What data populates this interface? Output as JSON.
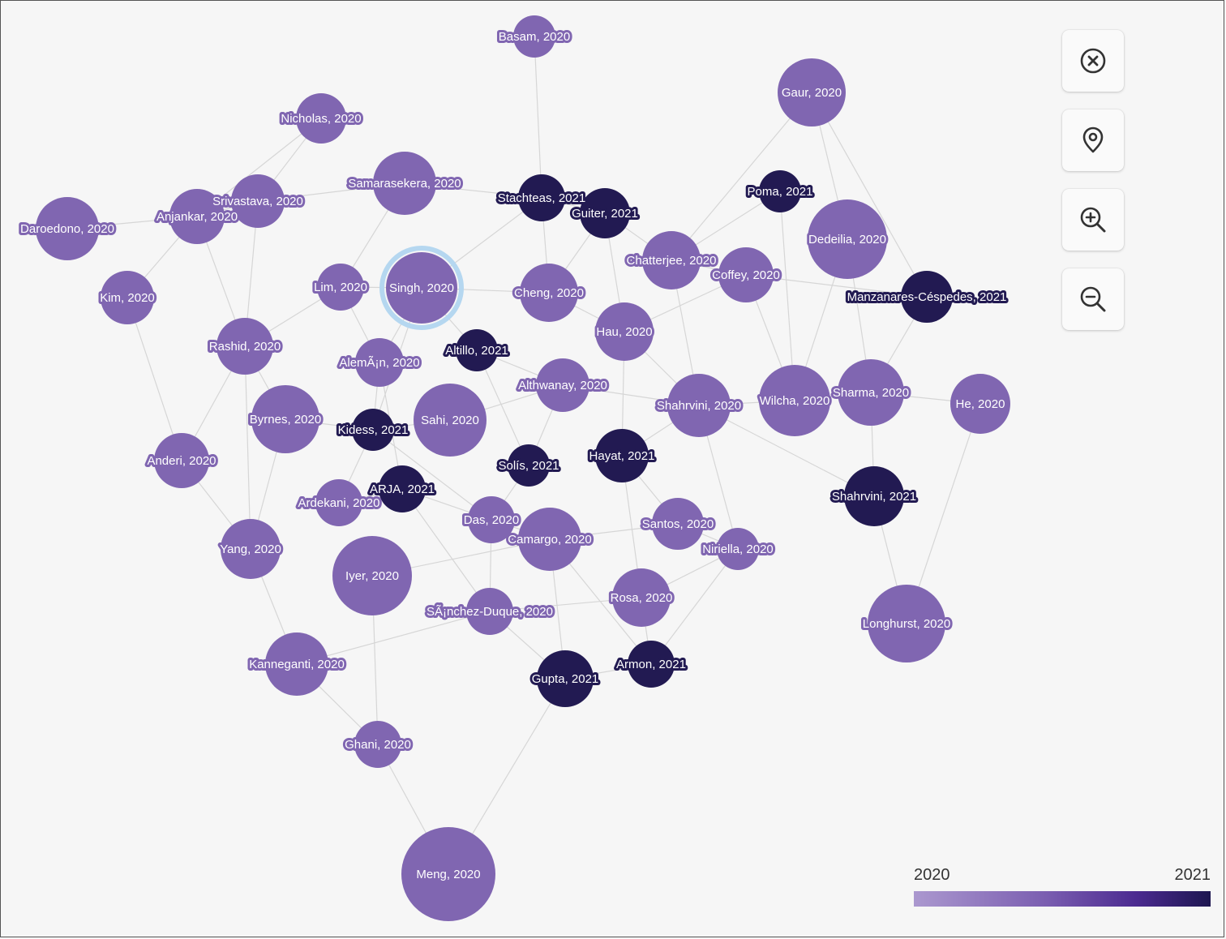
{
  "colors": {
    "year_2020": "#8066b1",
    "year_2021": "#221a52",
    "edge": "#d6d6d6",
    "highlight_ring": "#b5d7f0"
  },
  "legend": {
    "min_label": "2020",
    "max_label": "2021"
  },
  "controls": [
    {
      "icon": "close-circle-icon",
      "name": "close-button"
    },
    {
      "icon": "location-pin-icon",
      "name": "locate-button"
    },
    {
      "icon": "zoom-in-icon",
      "name": "zoom-in-button"
    },
    {
      "icon": "zoom-out-icon",
      "name": "zoom-out-button"
    }
  ],
  "nodes": [
    {
      "id": "basam",
      "label": "Basam, 2020",
      "year": 2020
    },
    {
      "id": "gaur",
      "label": "Gaur, 2020",
      "year": 2020
    },
    {
      "id": "nicholas",
      "label": "Nicholas, 2020",
      "year": 2020
    },
    {
      "id": "samarasekera",
      "label": "Samarasekera, 2020",
      "year": 2020
    },
    {
      "id": "stachteas",
      "label": "Stachteas, 2021",
      "year": 2021
    },
    {
      "id": "guiter",
      "label": "Guiter, 2021",
      "year": 2021
    },
    {
      "id": "poma",
      "label": "Poma, 2021",
      "year": 2021
    },
    {
      "id": "srivastava",
      "label": "Srivastava, 2020",
      "year": 2020
    },
    {
      "id": "anjankar",
      "label": "Anjankar, 2020",
      "year": 2020
    },
    {
      "id": "daroedono",
      "label": "Daroedono, 2020",
      "year": 2020
    },
    {
      "id": "dedeilia",
      "label": "Dedeilia, 2020",
      "year": 2020
    },
    {
      "id": "chatterjee",
      "label": "Chatterjee, 2020",
      "year": 2020
    },
    {
      "id": "coffey",
      "label": "Coffey, 2020",
      "year": 2020
    },
    {
      "id": "manzanares",
      "label": "Manzanares-Céspedes, 2021",
      "year": 2021
    },
    {
      "id": "kim",
      "label": "Kim, 2020",
      "year": 2020
    },
    {
      "id": "lim",
      "label": "Lim, 2020",
      "year": 2020
    },
    {
      "id": "singh",
      "label": "Singh, 2020",
      "year": 2020,
      "highlighted": true
    },
    {
      "id": "cheng",
      "label": "Cheng, 2020",
      "year": 2020
    },
    {
      "id": "hau",
      "label": "Hau, 2020",
      "year": 2020
    },
    {
      "id": "rashid",
      "label": "Rashid, 2020",
      "year": 2020
    },
    {
      "id": "aleman",
      "label": "AlemÃ¡n, 2020",
      "year": 2020
    },
    {
      "id": "altillo",
      "label": "Altillo, 2021",
      "year": 2021
    },
    {
      "id": "althwanay",
      "label": "Althwanay, 2020",
      "year": 2020
    },
    {
      "id": "shahrvini2020",
      "label": "Shahrvini, 2020",
      "year": 2020
    },
    {
      "id": "wilcha",
      "label": "Wilcha, 2020",
      "year": 2020
    },
    {
      "id": "sharma",
      "label": "Sharma, 2020",
      "year": 2020
    },
    {
      "id": "he",
      "label": "He, 2020",
      "year": 2020
    },
    {
      "id": "byrnes",
      "label": "Byrnes, 2020",
      "year": 2020
    },
    {
      "id": "kidess",
      "label": "Kidess, 2021",
      "year": 2021
    },
    {
      "id": "sahi",
      "label": "Sahi, 2020",
      "year": 2020
    },
    {
      "id": "anderi",
      "label": "Anderi, 2020",
      "year": 2020
    },
    {
      "id": "solis",
      "label": "Solís, 2021",
      "year": 2021
    },
    {
      "id": "hayat",
      "label": "Hayat, 2021",
      "year": 2021
    },
    {
      "id": "arja",
      "label": "ARJA, 2021",
      "year": 2021
    },
    {
      "id": "ardekani",
      "label": "Ardekani, 2020",
      "year": 2020
    },
    {
      "id": "shahrvini2021",
      "label": "Shahrvini, 2021",
      "year": 2021
    },
    {
      "id": "das",
      "label": "Das, 2020",
      "year": 2020
    },
    {
      "id": "camargo",
      "label": "Camargo, 2020",
      "year": 2020
    },
    {
      "id": "santos",
      "label": "Santos, 2020",
      "year": 2020
    },
    {
      "id": "yang",
      "label": "Yang, 2020",
      "year": 2020
    },
    {
      "id": "niriella",
      "label": "Niriella, 2020",
      "year": 2020
    },
    {
      "id": "iyer",
      "label": "Iyer, 2020",
      "year": 2020
    },
    {
      "id": "rosa",
      "label": "Rosa, 2020",
      "year": 2020
    },
    {
      "id": "sanchez",
      "label": "SÃ¡nchez-Duque, 2020",
      "year": 2020
    },
    {
      "id": "longhurst",
      "label": "Longhurst, 2020",
      "year": 2020
    },
    {
      "id": "kanneganti",
      "label": "Kanneganti, 2020",
      "year": 2020
    },
    {
      "id": "armon",
      "label": "Armon, 2021",
      "year": 2021
    },
    {
      "id": "gupta",
      "label": "Gupta, 2021",
      "year": 2021
    },
    {
      "id": "ghani",
      "label": "Ghani, 2020",
      "year": 2020
    },
    {
      "id": "meng",
      "label": "Meng, 2020",
      "year": 2020
    }
  ],
  "edges": [
    [
      "basam",
      "stachteas"
    ],
    [
      "nicholas",
      "srivastava"
    ],
    [
      "nicholas",
      "anjankar"
    ],
    [
      "srivastava",
      "samarasekera"
    ],
    [
      "anjankar",
      "daroedono"
    ],
    [
      "anjankar",
      "srivastava"
    ],
    [
      "anjankar",
      "kim"
    ],
    [
      "anjankar",
      "rashid"
    ],
    [
      "srivastava",
      "rashid"
    ],
    [
      "samarasekera",
      "lim"
    ],
    [
      "samarasekera",
      "stachteas"
    ],
    [
      "stachteas",
      "guiter"
    ],
    [
      "stachteas",
      "cheng"
    ],
    [
      "stachteas",
      "singh"
    ],
    [
      "guiter",
      "chatterjee"
    ],
    [
      "guiter",
      "hau"
    ],
    [
      "guiter",
      "cheng"
    ],
    [
      "gaur",
      "chatterjee"
    ],
    [
      "gaur",
      "dedeilia"
    ],
    [
      "gaur",
      "manzanares"
    ],
    [
      "poma",
      "chatterjee"
    ],
    [
      "poma",
      "wilcha"
    ],
    [
      "chatterjee",
      "coffey"
    ],
    [
      "chatterjee",
      "shahrvini2020"
    ],
    [
      "coffey",
      "wilcha"
    ],
    [
      "coffey",
      "hau"
    ],
    [
      "coffey",
      "manzanares"
    ],
    [
      "dedeilia",
      "sharma"
    ],
    [
      "manzanares",
      "sharma"
    ],
    [
      "sharma",
      "he"
    ],
    [
      "sharma",
      "shahrvini2021"
    ],
    [
      "sharma",
      "wilcha"
    ],
    [
      "wilcha",
      "shahrvini2020"
    ],
    [
      "shahrvini2021",
      "longhurst"
    ],
    [
      "he",
      "longhurst"
    ],
    [
      "shahrvini2021",
      "shahrvini2020"
    ],
    [
      "kim",
      "anderi"
    ],
    [
      "rashid",
      "anderi"
    ],
    [
      "rashid",
      "lim"
    ],
    [
      "rashid",
      "byrnes"
    ],
    [
      "lim",
      "aleman"
    ],
    [
      "lim",
      "singh"
    ],
    [
      "singh",
      "aleman"
    ],
    [
      "singh",
      "altillo"
    ],
    [
      "singh",
      "kidess"
    ],
    [
      "singh",
      "cheng"
    ],
    [
      "aleman",
      "kidess"
    ],
    [
      "aleman",
      "arja"
    ],
    [
      "altillo",
      "althwanay"
    ],
    [
      "althwanay",
      "shahrvini2020"
    ],
    [
      "althwanay",
      "sahi"
    ],
    [
      "sahi",
      "kidess"
    ],
    [
      "byrnes",
      "kidess"
    ],
    [
      "byrnes",
      "yang"
    ],
    [
      "rashid",
      "yang"
    ],
    [
      "anderi",
      "yang"
    ],
    [
      "kidess",
      "ardekani"
    ],
    [
      "arja",
      "ardekani"
    ],
    [
      "arja",
      "das"
    ],
    [
      "solis",
      "das"
    ],
    [
      "solis",
      "althwanay"
    ],
    [
      "hayat",
      "santos"
    ],
    [
      "hayat",
      "rosa"
    ],
    [
      "hayat",
      "hau"
    ],
    [
      "camargo",
      "das"
    ],
    [
      "camargo",
      "santos"
    ],
    [
      "santos",
      "niriella"
    ],
    [
      "niriella",
      "shahrvini2020"
    ],
    [
      "niriella",
      "rosa"
    ],
    [
      "niriella",
      "armon"
    ],
    [
      "iyer",
      "camargo"
    ],
    [
      "iyer",
      "ghani"
    ],
    [
      "sanchez",
      "das"
    ],
    [
      "sanchez",
      "rosa"
    ],
    [
      "sanchez",
      "gupta"
    ],
    [
      "sanchez",
      "kanneganti"
    ],
    [
      "camargo",
      "gupta"
    ],
    [
      "rosa",
      "armon"
    ],
    [
      "gupta",
      "armon"
    ],
    [
      "gupta",
      "meng"
    ],
    [
      "yang",
      "kanneganti"
    ],
    [
      "kanneganti",
      "ghani"
    ],
    [
      "ghani",
      "meng"
    ],
    [
      "arja",
      "sanchez"
    ],
    [
      "hau",
      "shahrvini2020"
    ],
    [
      "shahrvini2020",
      "hayat"
    ],
    [
      "cheng",
      "hau"
    ],
    [
      "kidess",
      "das"
    ],
    [
      "camargo",
      "armon"
    ],
    [
      "wilcha",
      "dedeilia"
    ],
    [
      "altillo",
      "solis"
    ]
  ]
}
